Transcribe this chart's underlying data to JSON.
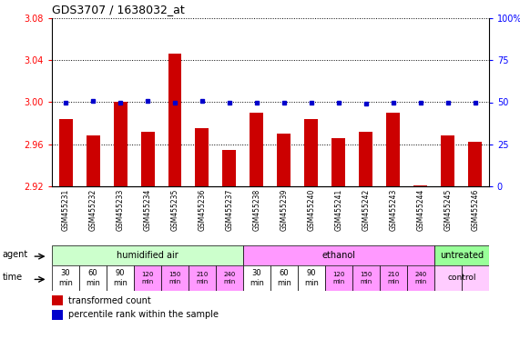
{
  "title": "GDS3707 / 1638032_at",
  "samples": [
    "GSM455231",
    "GSM455232",
    "GSM455233",
    "GSM455234",
    "GSM455235",
    "GSM455236",
    "GSM455237",
    "GSM455238",
    "GSM455239",
    "GSM455240",
    "GSM455241",
    "GSM455242",
    "GSM455243",
    "GSM455244",
    "GSM455245",
    "GSM455246"
  ],
  "bar_values": [
    2.984,
    2.968,
    3.0,
    2.972,
    3.046,
    2.975,
    2.955,
    2.99,
    2.97,
    2.984,
    2.966,
    2.972,
    2.99,
    2.921,
    2.968,
    2.962
  ],
  "percentile_values": [
    50,
    51,
    50,
    51,
    50,
    51,
    50,
    50,
    50,
    50,
    50,
    49,
    50,
    50,
    50,
    50
  ],
  "ylim_left": [
    2.92,
    3.08
  ],
  "ylim_right": [
    0,
    100
  ],
  "yticks_left": [
    2.92,
    2.96,
    3.0,
    3.04,
    3.08
  ],
  "yticks_right": [
    0,
    25,
    50,
    75,
    100
  ],
  "bar_color": "#cc0000",
  "dot_color": "#0000cc",
  "agent_groups": [
    {
      "label": "humidified air",
      "start": 0,
      "end": 7,
      "color": "#ccffcc"
    },
    {
      "label": "ethanol",
      "start": 7,
      "end": 14,
      "color": "#ff99ff"
    },
    {
      "label": "untreated",
      "start": 14,
      "end": 16,
      "color": "#99ff99"
    }
  ],
  "time_labels_display": [
    "30\nmin",
    "60\nmin",
    "90\nmin",
    "120\nmin",
    "150\nmin",
    "210\nmin",
    "240\nmin",
    "30\nmin",
    "60\nmin",
    "90\nmin",
    "120\nmin",
    "150\nmin",
    "210\nmin",
    "240\nmin",
    "",
    ""
  ],
  "time_colors": [
    "#ffffff",
    "#ffffff",
    "#ffffff",
    "#ff99ff",
    "#ff99ff",
    "#ff99ff",
    "#ff99ff",
    "#ffffff",
    "#ffffff",
    "#ffffff",
    "#ff99ff",
    "#ff99ff",
    "#ff99ff",
    "#ff99ff",
    "#ffccff",
    "#ffccff"
  ],
  "control_label": "control",
  "legend_items": [
    {
      "color": "#cc0000",
      "label": "transformed count"
    },
    {
      "color": "#0000cc",
      "label": "percentile rank within the sample"
    }
  ]
}
